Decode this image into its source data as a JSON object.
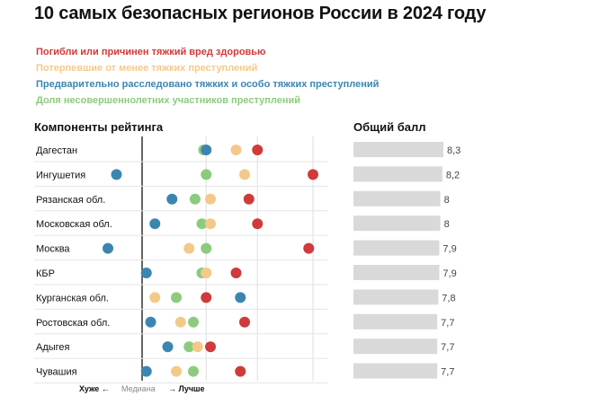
{
  "title": "10 самых безопасных регионов России в 2024 году",
  "legend": [
    {
      "label": "Погибли или причинен тяжкий вред здоровью",
      "color": "#d03a3a"
    },
    {
      "label": "Потерпевшие от менее тяжких преступлений",
      "color": "#f3c98a"
    },
    {
      "label": "Предварительно расследовано тяжких и особо тяжких преступлений",
      "color": "#3b86b1"
    },
    {
      "label": "Доля несовершеннолетних участников преступлений",
      "color": "#8ccb7e"
    }
  ],
  "components_title": "Компоненты рейтинга",
  "total_title": "Общий балл",
  "axis": {
    "worse": "Хуже ←",
    "median": "Медиана",
    "better": "→ Лучше"
  },
  "chart_data": {
    "type": "scatter",
    "title": "10 самых безопасных регионов России в 2024 году",
    "categories": [
      "Дагестан",
      "Ингушетия",
      "Рязанская обл.",
      "Московская обл.",
      "Москва",
      "КБР",
      "Курганская обл.",
      "Ростовская обл.",
      "Адыгея",
      "Чувашия"
    ],
    "series": [
      {
        "name": "Погибли или причинен тяжкий вред здоровью",
        "color": "#d03a3a",
        "values": [
          1.35,
          2.0,
          1.25,
          1.35,
          1.95,
          1.1,
          0.75,
          1.2,
          0.8,
          1.15
        ]
      },
      {
        "name": "Потерпевшие от менее тяжких преступлений",
        "color": "#f3c98a",
        "values": [
          1.1,
          1.2,
          0.8,
          0.8,
          0.55,
          0.75,
          0.15,
          0.45,
          0.65,
          0.4
        ]
      },
      {
        "name": "Предварительно расследовано тяжких и особо тяжких преступлений",
        "color": "#3b86b1",
        "values": [
          0.75,
          -0.3,
          0.35,
          0.15,
          -0.4,
          0.05,
          1.15,
          0.1,
          0.3,
          0.05
        ]
      },
      {
        "name": "Доля несовершеннолетних участников преступлений",
        "color": "#8ccb7e",
        "values": [
          0.72,
          0.75,
          0.62,
          0.7,
          0.75,
          0.7,
          0.4,
          0.6,
          0.55,
          0.6
        ]
      }
    ],
    "total_scores": [
      "8,3",
      "8,2",
      "8",
      "8",
      "7,9",
      "7,9",
      "7,8",
      "7,7",
      "7,7",
      "7,7"
    ],
    "total_values": [
      8.3,
      8.2,
      8.0,
      8.0,
      7.9,
      7.9,
      7.8,
      7.7,
      7.7,
      7.7
    ],
    "grid": true
  }
}
